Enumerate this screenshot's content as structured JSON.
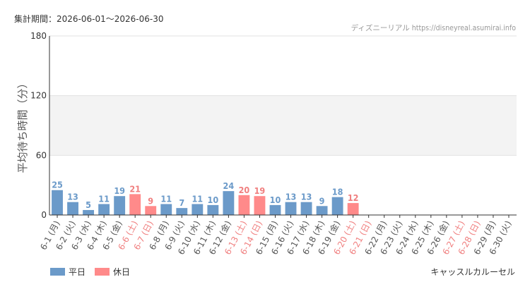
{
  "header": {
    "period_label": "集計期間：2026-06-01～2026-06-30",
    "site_credit": "ディズニーリアル https://disneyreal.asumirai.info"
  },
  "footer": {
    "attraction_name": "キャッスルカルーセル"
  },
  "colors": {
    "weekday": "#6b9ac9",
    "holiday": "#ff8a8a",
    "weekday_text": "#6b9ac9",
    "holiday_text": "#f07f7f",
    "label_text": "#555555"
  },
  "chart_data": {
    "type": "bar",
    "title": "",
    "ylabel": "平均待ち時間（分）",
    "xlabel": "",
    "ylim": [
      0,
      180
    ],
    "yticks": [
      0,
      60,
      120,
      180
    ],
    "grid": true,
    "legend_position": "bottom-left",
    "series": [
      {
        "name": "平日",
        "color": "#6b9ac9"
      },
      {
        "name": "休日",
        "color": "#ff8a8a"
      }
    ],
    "categories": [
      "6-1 (月)",
      "6-2 (火)",
      "6-3 (水)",
      "6-4 (木)",
      "6-5 (金)",
      "6-6 (土)",
      "6-7 (日)",
      "6-8 (月)",
      "6-9 (火)",
      "6-10 (水)",
      "6-11 (木)",
      "6-12 (金)",
      "6-13 (土)",
      "6-14 (日)",
      "6-15 (月)",
      "6-16 (火)",
      "6-17 (水)",
      "6-18 (木)",
      "6-19 (金)",
      "6-20 (土)",
      "6-21 (日)",
      "6-22 (月)",
      "6-23 (火)",
      "6-24 (水)",
      "6-25 (木)",
      "6-26 (金)",
      "6-27 (土)",
      "6-28 (日)",
      "6-29 (月)",
      "6-30 (火)"
    ],
    "day_type": [
      "平日",
      "平日",
      "平日",
      "平日",
      "平日",
      "休日",
      "休日",
      "平日",
      "平日",
      "平日",
      "平日",
      "平日",
      "休日",
      "休日",
      "平日",
      "平日",
      "平日",
      "平日",
      "平日",
      "休日",
      "休日",
      "平日",
      "平日",
      "平日",
      "平日",
      "平日",
      "休日",
      "休日",
      "平日",
      "平日"
    ],
    "values": [
      25,
      13,
      5,
      11,
      19,
      21,
      9,
      11,
      7,
      11,
      10,
      24,
      20,
      19,
      10,
      13,
      13,
      9,
      18,
      12,
      null,
      null,
      null,
      null,
      null,
      null,
      null,
      null,
      null,
      null
    ]
  }
}
